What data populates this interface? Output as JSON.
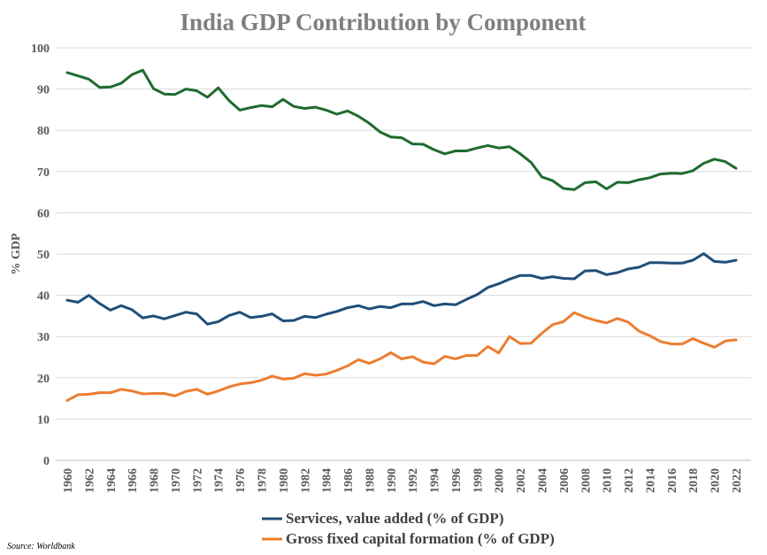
{
  "chart_data": {
    "type": "line",
    "title": "India GDP Contribution by Component",
    "ylabel": "% GDP",
    "ylim": [
      0,
      100
    ],
    "yticks": [
      0,
      10,
      20,
      30,
      40,
      50,
      60,
      70,
      80,
      90,
      100
    ],
    "xticks": [
      1960,
      1962,
      1964,
      1966,
      1968,
      1970,
      1972,
      1974,
      1976,
      1978,
      1980,
      1982,
      1984,
      1986,
      1988,
      1990,
      1992,
      1994,
      1996,
      1998,
      2000,
      2002,
      2004,
      2006,
      2008,
      2010,
      2012,
      2014,
      2016,
      2018,
      2020,
      2022
    ],
    "x": [
      1960,
      1961,
      1962,
      1963,
      1964,
      1965,
      1966,
      1967,
      1968,
      1969,
      1970,
      1971,
      1972,
      1973,
      1974,
      1975,
      1976,
      1977,
      1978,
      1979,
      1980,
      1981,
      1982,
      1983,
      1984,
      1985,
      1986,
      1987,
      1988,
      1989,
      1990,
      1991,
      1992,
      1993,
      1994,
      1995,
      1996,
      1997,
      1998,
      1999,
      2000,
      2001,
      2002,
      2003,
      2004,
      2005,
      2006,
      2007,
      2008,
      2009,
      2010,
      2011,
      2012,
      2013,
      2014,
      2015,
      2016,
      2017,
      2018,
      2019,
      2020,
      2021,
      2022
    ],
    "grid": true,
    "legend_position": "bottom",
    "series": [
      {
        "color": "#1e6b2e",
        "values": [
          94.0,
          93.2,
          92.4,
          90.4,
          90.5,
          91.4,
          93.5,
          94.6,
          90.1,
          88.8,
          88.7,
          90.0,
          89.6,
          88.0,
          90.3,
          87.2,
          84.9,
          85.5,
          86.0,
          85.7,
          87.5,
          85.8,
          85.3,
          85.6,
          84.9,
          83.9,
          84.7,
          83.4,
          81.7,
          79.6,
          78.4,
          78.2,
          76.7,
          76.6,
          75.3,
          74.3,
          75.0,
          75.0,
          75.7,
          76.3,
          75.7,
          76.0,
          74.3,
          72.2,
          68.7,
          67.8,
          65.9,
          65.6,
          67.3,
          67.5,
          65.8,
          67.4,
          67.3,
          68.0,
          68.5,
          69.4,
          69.6,
          69.5,
          70.2,
          72.0,
          73.0,
          72.4,
          70.8
        ]
      },
      {
        "name": "Services, value added (% of GDP)",
        "color": "#1f4e79",
        "values": [
          38.8,
          38.3,
          40.0,
          38.0,
          36.4,
          37.5,
          36.5,
          34.5,
          35.0,
          34.3,
          35.1,
          35.9,
          35.5,
          33.0,
          33.6,
          35.1,
          35.9,
          34.6,
          34.9,
          35.5,
          33.8,
          33.9,
          34.9,
          34.6,
          35.4,
          36.1,
          37.0,
          37.5,
          36.7,
          37.3,
          37.0,
          37.9,
          37.9,
          38.5,
          37.5,
          37.9,
          37.7,
          39.0,
          40.2,
          41.9,
          42.8,
          43.9,
          44.8,
          44.8,
          44.1,
          44.5,
          44.1,
          44.0,
          45.9,
          46.0,
          45.0,
          45.5,
          46.4,
          46.8,
          47.9,
          47.9,
          47.8,
          47.8,
          48.5,
          50.1,
          48.2,
          48.0,
          48.5
        ]
      },
      {
        "name": "Gross fixed capital formation (% of GDP)",
        "color": "#ed7d31",
        "values": [
          14.5,
          15.9,
          16.0,
          16.4,
          16.4,
          17.2,
          16.8,
          16.1,
          16.2,
          16.2,
          15.6,
          16.7,
          17.2,
          16.0,
          16.8,
          17.8,
          18.5,
          18.8,
          19.4,
          20.4,
          19.7,
          19.9,
          21.0,
          20.6,
          20.9,
          21.8,
          22.9,
          24.4,
          23.5,
          24.6,
          26.1,
          24.6,
          25.1,
          23.8,
          23.4,
          25.2,
          24.6,
          25.4,
          25.4,
          27.6,
          26.0,
          30.0,
          28.3,
          28.4,
          30.8,
          32.9,
          33.6,
          35.8,
          34.7,
          33.9,
          33.3,
          34.4,
          33.5,
          31.3,
          30.2,
          28.8,
          28.2,
          28.2,
          29.5,
          28.4,
          27.4,
          28.9,
          29.2
        ]
      }
    ]
  },
  "source_note": "Source: Worldbank"
}
